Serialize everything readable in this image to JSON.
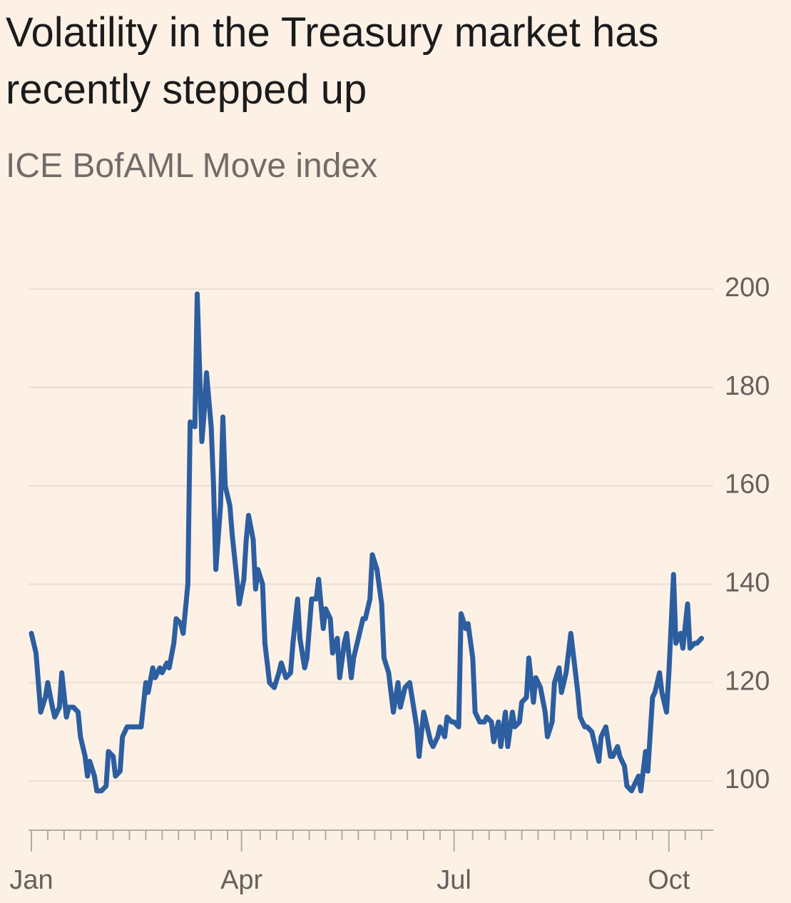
{
  "chart_data": {
    "type": "line",
    "title": "Volatility in the Treasury market has recently stepped up",
    "subtitle": "ICE BofAML Move index",
    "x": [
      0,
      2,
      4,
      6,
      7,
      9,
      10,
      12,
      13,
      15,
      16,
      18,
      20,
      21,
      23,
      24,
      25,
      27,
      28,
      30,
      32,
      33,
      35,
      36,
      38,
      39,
      41,
      42,
      44,
      45,
      47,
      49,
      50,
      52,
      53,
      55,
      56,
      58,
      59,
      61,
      62,
      64,
      65,
      67,
      68,
      70,
      71,
      73,
      74,
      75,
      77,
      78,
      79,
      81,
      82,
      83,
      85,
      86,
      88,
      89,
      91,
      92,
      93,
      95,
      96,
      97,
      99,
      100,
      102,
      104,
      106,
      107,
      109,
      111,
      112,
      114,
      115,
      117,
      118,
      120,
      122,
      123,
      125,
      126,
      128,
      129,
      131,
      132,
      134,
      135,
      137,
      138,
      140,
      142,
      143,
      145,
      146,
      148,
      150,
      151,
      153,
      154,
      155,
      157,
      158,
      160,
      162,
      163,
      165,
      166,
      168,
      169,
      171,
      172,
      174,
      175,
      177,
      178,
      180,
      181,
      183,
      184,
      186,
      187,
      189,
      190,
      192,
      194,
      195,
      197,
      198,
      200,
      201,
      203,
      204,
      206,
      207,
      209,
      210,
      212,
      213,
      215,
      216,
      218,
      220,
      221,
      223,
      224,
      226,
      227,
      229,
      231,
      232,
      234,
      235,
      237,
      238,
      240,
      241,
      243,
      244,
      246,
      248,
      249,
      251,
      252,
      254,
      255,
      257,
      258,
      260,
      261,
      263,
      264,
      266,
      267,
      269,
      270,
      272,
      273,
      275,
      276,
      278,
      279,
      281,
      282,
      284,
      285,
      287
    ],
    "series": [
      {
        "name": "ICE BofAML Move index",
        "color": "#2c5ea0",
        "values": [
          130,
          126,
          114,
          117,
          120,
          115,
          113,
          115,
          122,
          113,
          115,
          115,
          114,
          109,
          105,
          101,
          104,
          101,
          98,
          98,
          99,
          106,
          105,
          101,
          102,
          109,
          111,
          111,
          111,
          111,
          111,
          120,
          118,
          123,
          121,
          123,
          122,
          124,
          123,
          128,
          133,
          132,
          130,
          140,
          173,
          172,
          199,
          169,
          175,
          183,
          172,
          160,
          143,
          156,
          174,
          160,
          156,
          150,
          141,
          136,
          141,
          149,
          154,
          149,
          139,
          143,
          140,
          128,
          120,
          119,
          122,
          124,
          121,
          122,
          128,
          137,
          129,
          123,
          125,
          137,
          137,
          141,
          131,
          135,
          133,
          126,
          129,
          121,
          128,
          130,
          121,
          125,
          129,
          133,
          133,
          137,
          146,
          143,
          136,
          125,
          122,
          118,
          114,
          120,
          115,
          119,
          120,
          117,
          111,
          105,
          114,
          112,
          108,
          107,
          109,
          111,
          109,
          113,
          112,
          112,
          111,
          134,
          131,
          132,
          125,
          114,
          112,
          112,
          113,
          112,
          108,
          112,
          107,
          114,
          107,
          114,
          111,
          112,
          116,
          117,
          125,
          116,
          121,
          119,
          114,
          109,
          112,
          120,
          123,
          118,
          122,
          130,
          126,
          118,
          113,
          111,
          111,
          110,
          108,
          104,
          109,
          111,
          105,
          105,
          107,
          105,
          103,
          99,
          98,
          99,
          101,
          98,
          106,
          102,
          117,
          118,
          122,
          118,
          114,
          122,
          142,
          128,
          130,
          127,
          136,
          127,
          128,
          128,
          129
        ]
      }
    ],
    "xlim": [
      0,
      292
    ],
    "xticks": [
      {
        "value": 0,
        "label": "Jan"
      },
      {
        "value": 90,
        "label": "Apr"
      },
      {
        "value": 181,
        "label": "Jul"
      },
      {
        "value": 273,
        "label": "Oct"
      }
    ],
    "xminorticks": [
      7,
      14,
      21,
      28,
      35,
      42,
      49,
      56,
      63,
      70,
      77,
      84,
      98,
      105,
      112,
      119,
      126,
      133,
      140,
      147,
      154,
      161,
      168,
      175,
      189,
      196,
      203,
      210,
      217,
      224,
      231,
      238,
      245,
      252,
      259,
      266,
      280,
      287
    ],
    "ylim": [
      90,
      205
    ],
    "yticks": [
      100,
      120,
      140,
      160,
      180,
      200
    ],
    "grid": true
  }
}
